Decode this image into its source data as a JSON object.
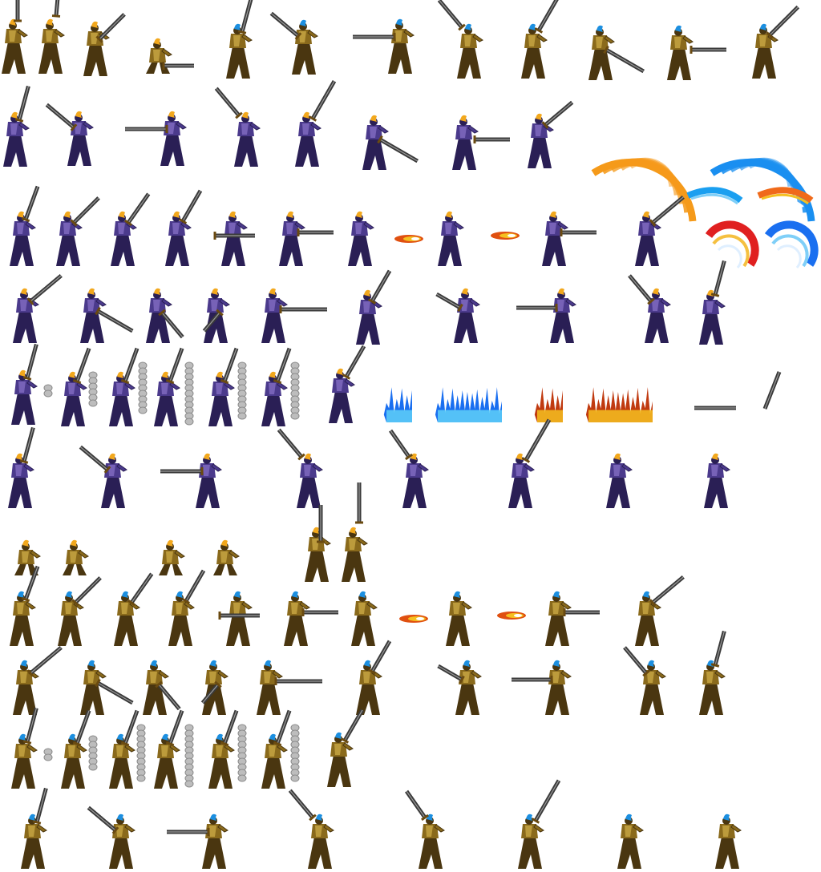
{
  "sheet": {
    "background": "#ffffff",
    "colors": {
      "armor_purple": "#4b3a8c",
      "armor_purple_dark": "#2a1f55",
      "armor_purple_light": "#8a74c9",
      "armor_gold": "#8a6a1c",
      "armor_gold_dark": "#4a3610",
      "armor_gold_light": "#d2b04a",
      "hair_orange": "#f2a81d",
      "hair_blue": "#1c8fe0",
      "blade": "#3a3a3a",
      "blade_edge": "#9a9a9a",
      "slash_orange": "#f59a1a",
      "slash_blue": "#1a8ff0",
      "flame_blue": "#1aa3f0",
      "flame_orange": "#f5a01a",
      "smoke": "#bdbdbd"
    }
  }
}
